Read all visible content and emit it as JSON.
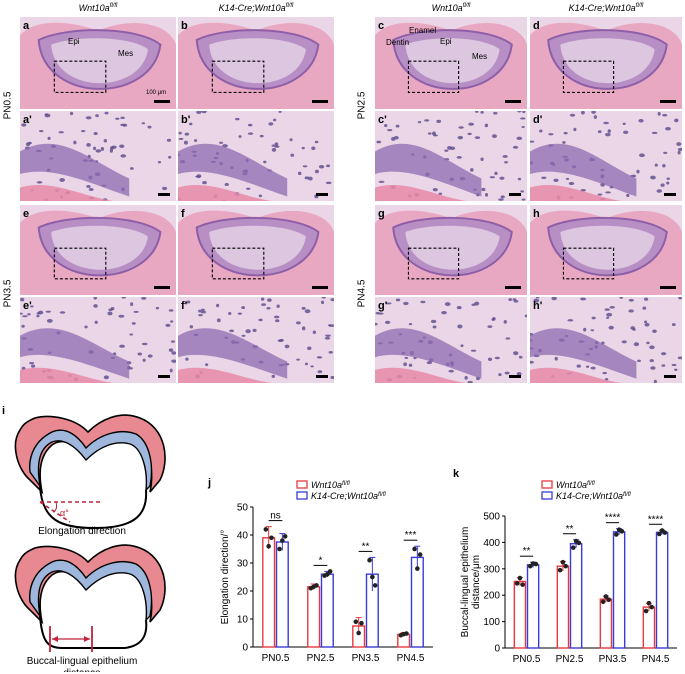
{
  "figure": {
    "column_headers": {
      "left_a": "Wnt10a",
      "left_a_sup": "fl/fl",
      "left_b": "K14-Cre;Wnt10a",
      "left_b_sup": "fl/fl",
      "right_a": "Wnt10a",
      "right_a_sup": "fl/fl",
      "right_b": "K14-Cre;Wnt10a",
      "right_b_sup": "fl/fl"
    },
    "stages": [
      "PN0.5",
      "PN2.5",
      "PN3.5",
      "PN4.5"
    ],
    "panel_letters": {
      "a": "a",
      "b": "b",
      "c": "c",
      "d": "d",
      "a2": "a'",
      "b2": "b'",
      "c2": "c'",
      "d2": "d'",
      "e": "e",
      "f": "f",
      "g": "g",
      "h": "h",
      "e2": "e'",
      "f2": "f'",
      "g2": "g'",
      "h2": "h'",
      "i": "i",
      "j": "j",
      "k": "k"
    },
    "tissue_labels": {
      "epi": "Epi",
      "mes": "Mes",
      "enamel": "Enamel",
      "dentin": "Dentin",
      "scale": "100 μm"
    },
    "schematic": {
      "angle_label": "α°",
      "elongation_caption": "Elongation direction",
      "distance_caption_1": "Buccal-lingual epithelium",
      "distance_caption_2": "distance"
    }
  },
  "chart_data": [
    {
      "type": "bar",
      "panel": "j",
      "categories": [
        "PN0.5",
        "PN2.5",
        "PN3.5",
        "PN4.5"
      ],
      "series": [
        {
          "name": "Wnt10a fl/fl",
          "values": [
            39,
            21.5,
            7.5,
            4.5
          ],
          "err": [
            4,
            1,
            3,
            0.7
          ],
          "points": [
            [
              42,
              36,
              39
            ],
            [
              21,
              21.5,
              22
            ],
            [
              9,
              5,
              8.5
            ],
            [
              4.2,
              4.6,
              4.8
            ]
          ]
        },
        {
          "name": "K14-Cre;Wnt10a fl/fl",
          "values": [
            37.5,
            26,
            26,
            32
          ],
          "err": [
            3,
            1,
            6,
            4
          ],
          "points": [
            [
              35,
              38,
              39.5
            ],
            [
              25.5,
              26,
              27
            ],
            [
              31,
              25,
              22
            ],
            [
              35,
              28,
              33
            ]
          ]
        }
      ],
      "ylabel": "Elongation direction/°",
      "ylim": [
        0,
        50
      ],
      "yticks": [
        "0",
        "10",
        "20",
        "30",
        "40",
        "50"
      ],
      "significance": [
        "ns",
        "*",
        "**",
        "***"
      ],
      "legend": [
        {
          "name": "Wnt10a",
          "sup": "fl/fl",
          "color": "#e8383d"
        },
        {
          "name": "K14-Cre;Wnt10a",
          "sup": "fl/fl",
          "color": "#3a3ad8"
        }
      ],
      "colors": {
        "ctrl": "#e8383d",
        "ko": "#3a3ad8"
      }
    },
    {
      "type": "bar",
      "panel": "k",
      "categories": [
        "PN0.5",
        "PN2.5",
        "PN3.5",
        "PN4.5"
      ],
      "series": [
        {
          "name": "Wnt10a fl/fl",
          "values": [
            252,
            310,
            185,
            155
          ],
          "err": [
            15,
            18,
            12,
            14
          ],
          "points": [
            [
              245,
              265,
              240
            ],
            [
              295,
              325,
              310
            ],
            [
              175,
              195,
              183
            ],
            [
              140,
              170,
              155
            ]
          ]
        },
        {
          "name": "K14-Cre;Wnt10a fl/fl",
          "values": [
            315,
            395,
            440,
            438
          ],
          "err": [
            10,
            15,
            12,
            8
          ],
          "points": [
            [
              310,
              320,
              318
            ],
            [
              380,
              405,
              398
            ],
            [
              430,
              448,
              442
            ],
            [
              432,
              445,
              437
            ]
          ]
        }
      ],
      "ylabel_1": "Buccal-lingual epithelium",
      "ylabel_2": "distance/μm",
      "ylim": [
        0,
        500
      ],
      "yticks": [
        "0",
        "100",
        "200",
        "300",
        "400",
        "500"
      ],
      "significance": [
        "**",
        "**",
        "****",
        "****"
      ],
      "legend": [
        {
          "name": "Wnt10a",
          "sup": "fl/fl",
          "color": "#e8383d"
        },
        {
          "name": "K14-Cre;Wnt10a",
          "sup": "fl/fl",
          "color": "#3a3ad8"
        }
      ],
      "colors": {
        "ctrl": "#e8383d",
        "ko": "#3a3ad8"
      }
    }
  ]
}
